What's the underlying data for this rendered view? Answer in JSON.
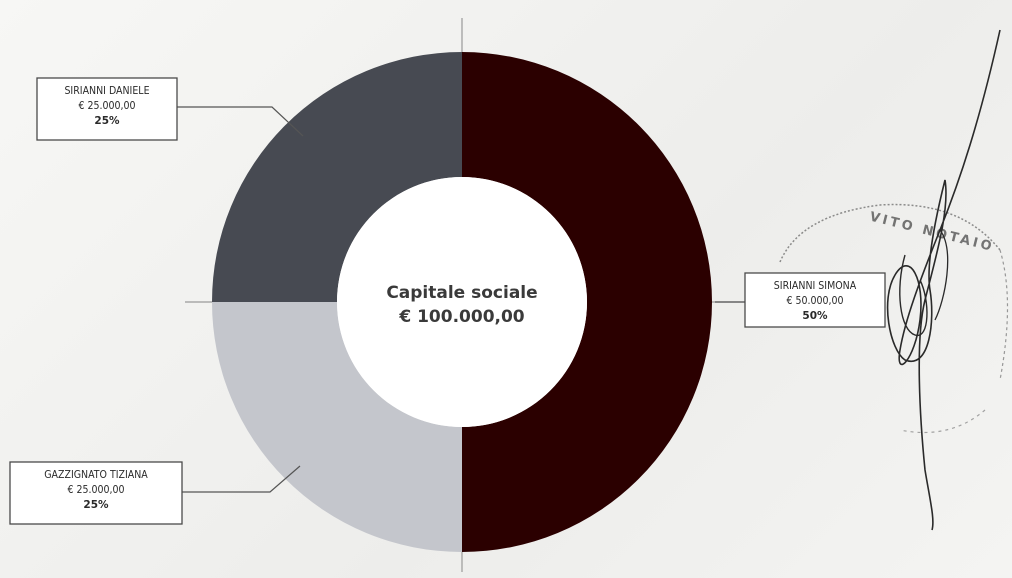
{
  "chart_data": {
    "type": "pie",
    "variant": "donut",
    "title": "",
    "center_label": {
      "line1": "Capitale sociale",
      "line2": "€ 100.000,00"
    },
    "total": 100000,
    "currency": "EUR",
    "slices": [
      {
        "name": "SIRIANNI SIMONA",
        "amount_label": "€ 50.000,00",
        "value": 50000,
        "percent_label": "50%",
        "percent": 50,
        "color": "#2b0000"
      },
      {
        "name": "GAZZIGNATO TIZIANA",
        "amount_label": "€ 25.000,00",
        "value": 25000,
        "percent_label": "25%",
        "percent": 25,
        "color": "#c4c6cc"
      },
      {
        "name": "SIRIANNI DANIELE",
        "amount_label": "€ 25.000,00",
        "value": 25000,
        "percent_label": "25%",
        "percent": 25,
        "color": "#474a52"
      }
    ],
    "legend": "none",
    "labels": "callout-boxes",
    "start_angle": "12 o'clock",
    "direction": "clockwise"
  },
  "stamp": {
    "text": "VITO NOTAIO"
  }
}
